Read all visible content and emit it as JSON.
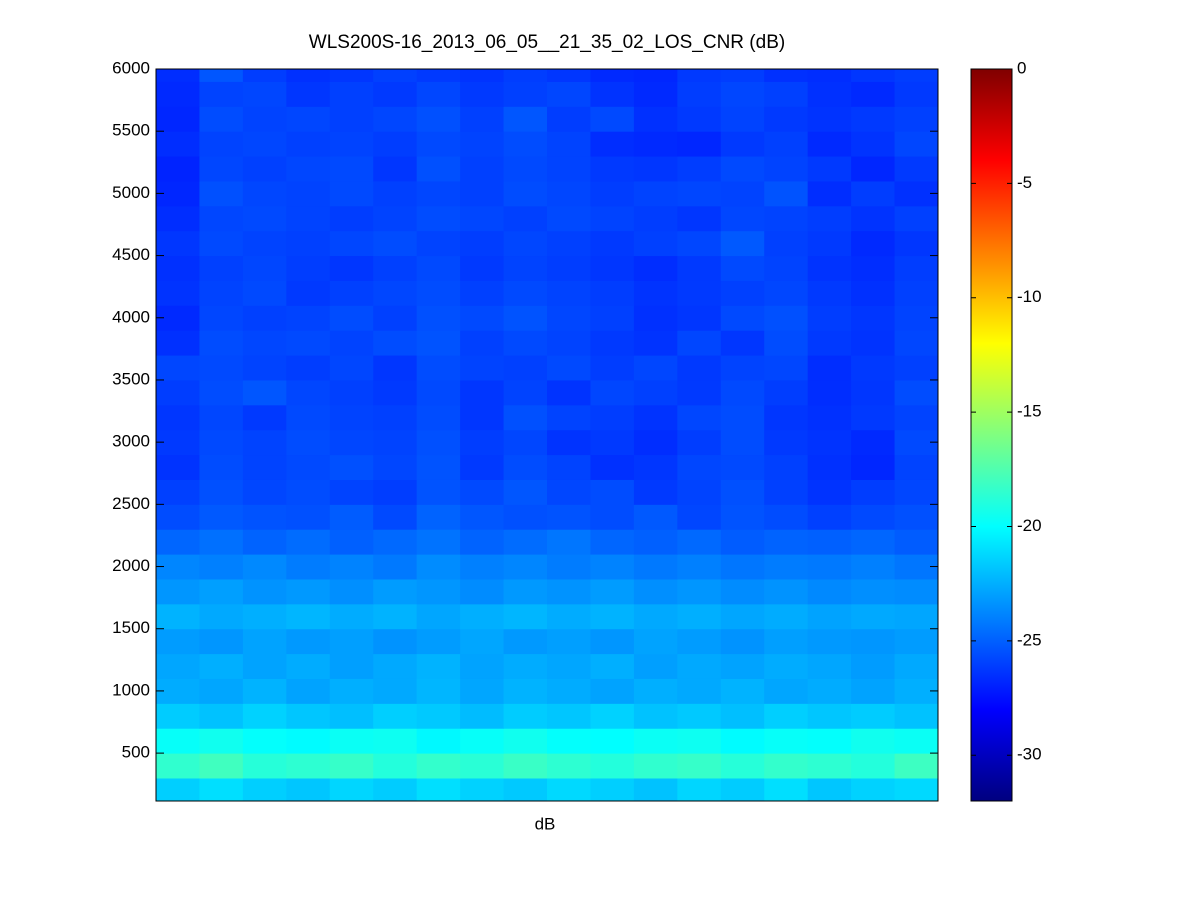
{
  "chart_data": {
    "type": "heatmap",
    "title": "WLS200S-16_2013_06_05__21_35_02_LOS_CNR (dB)",
    "xlabel": "dB",
    "colormap": "jet",
    "clim": [
      -32,
      0
    ],
    "cticks": [
      -30,
      -25,
      -20,
      -15,
      -10,
      -5,
      0
    ],
    "ylim": [
      115,
      6000
    ],
    "yticks": [
      500,
      1000,
      1500,
      2000,
      2500,
      3000,
      3500,
      4000,
      4500,
      5000,
      5500,
      6000
    ],
    "y_bins": [
      115,
      300,
      500,
      700,
      900,
      1100,
      1300,
      1500,
      1700,
      1900,
      2100,
      2300,
      2500,
      2700,
      2900,
      3100,
      3300,
      3500,
      3700,
      3900,
      4100,
      4300,
      4500,
      4700,
      4900,
      5100,
      5300,
      5500,
      5700,
      5900,
      6000
    ],
    "values": [
      [
        -21.5,
        -21,
        -21.5,
        -21.8,
        -21.3,
        -21.6,
        -21,
        -21.4,
        -21.7,
        -21.2,
        -21.5,
        -21.9,
        -21.3,
        -21.6,
        -21,
        -21.8,
        -21.4,
        -21.2
      ],
      [
        -18.5,
        -18,
        -18.8,
        -18.6,
        -18.3,
        -18.9,
        -18.4,
        -18.7,
        -18.2,
        -18.6,
        -18.9,
        -18.5,
        -18.3,
        -18.8,
        -18.4,
        -18.6,
        -18.9,
        -18.1
      ],
      [
        -19.8,
        -19.5,
        -19.9,
        -20.1,
        -19.7,
        -19.6,
        -20.2,
        -19.8,
        -19.5,
        -19.9,
        -20,
        -19.7,
        -19.6,
        -20.1,
        -19.8,
        -19.9,
        -19.5,
        -19.7
      ],
      [
        -21.6,
        -21.9,
        -21.4,
        -21.8,
        -22,
        -21.5,
        -21.7,
        -22.1,
        -21.6,
        -21.8,
        -21.4,
        -21.9,
        -21.7,
        -22,
        -21.5,
        -21.8,
        -21.6,
        -21.9
      ],
      [
        -22.6,
        -22.8,
        -22.4,
        -22.9,
        -22.5,
        -22.7,
        -22.3,
        -22.8,
        -22.4,
        -22.6,
        -22.9,
        -22.5,
        -22.7,
        -22.4,
        -22.8,
        -22.6,
        -22.9,
        -22.5
      ],
      [
        -22.8,
        -22.5,
        -22.9,
        -22.6,
        -23,
        -22.7,
        -22.4,
        -22.9,
        -22.6,
        -22.8,
        -22.5,
        -23,
        -22.7,
        -22.9,
        -22.6,
        -22.8,
        -23.1,
        -22.7
      ],
      [
        -23.1,
        -23.3,
        -22.9,
        -23.2,
        -23,
        -23.4,
        -23.1,
        -22.8,
        -23.2,
        -23,
        -23.3,
        -22.9,
        -23.1,
        -23.4,
        -23,
        -23.2,
        -23.3,
        -23.1
      ],
      [
        -22.4,
        -22.7,
        -22.5,
        -22.3,
        -22.6,
        -22.4,
        -22.8,
        -22.5,
        -22.3,
        -22.6,
        -22.4,
        -22.7,
        -22.5,
        -22.8,
        -22.6,
        -22.9,
        -22.7,
        -22.8
      ],
      [
        -23.3,
        -23,
        -23.4,
        -23.2,
        -23.5,
        -23.1,
        -23.3,
        -23.6,
        -23.2,
        -23.4,
        -23.1,
        -23.5,
        -23.3,
        -23.6,
        -23.4,
        -23.7,
        -23.5,
        -23.6
      ],
      [
        -23.8,
        -24,
        -23.7,
        -24.1,
        -23.9,
        -24.2,
        -23.6,
        -24,
        -23.8,
        -24.1,
        -23.9,
        -24.2,
        -24,
        -24.3,
        -24.1,
        -24.2,
        -24,
        -24.3
      ],
      [
        -24.8,
        -24.5,
        -24.9,
        -24.6,
        -25,
        -24.7,
        -24.4,
        -24.9,
        -24.6,
        -24.3,
        -24.8,
        -25,
        -24.7,
        -25.1,
        -24.9,
        -25,
        -24.8,
        -25.1
      ],
      [
        -25.6,
        -25.2,
        -25.4,
        -25.5,
        -25.1,
        -25.7,
        -24.9,
        -25.3,
        -25.5,
        -25.4,
        -25.6,
        -25.2,
        -25.8,
        -25.4,
        -25.6,
        -26,
        -25.7,
        -25.5
      ],
      [
        -26,
        -25.5,
        -25.8,
        -25.6,
        -25.9,
        -26.1,
        -25.4,
        -25.7,
        -25.3,
        -25.8,
        -25.6,
        -26.2,
        -25.9,
        -25.5,
        -26,
        -26.4,
        -26.1,
        -25.8
      ],
      [
        -26.4,
        -25.6,
        -25.9,
        -25.7,
        -25.5,
        -25.8,
        -25.4,
        -26.2,
        -25.6,
        -25.9,
        -26.5,
        -26.3,
        -25.8,
        -25.7,
        -26,
        -26.5,
        -26.8,
        -25.9
      ],
      [
        -26.2,
        -25.7,
        -25.9,
        -25.6,
        -25.8,
        -25.9,
        -25.5,
        -26.1,
        -25.8,
        -26.4,
        -26.2,
        -26.6,
        -26.1,
        -25.6,
        -26.2,
        -26.4,
        -26.7,
        -25.7
      ],
      [
        -26.3,
        -25.8,
        -26.2,
        -25.7,
        -25.9,
        -26,
        -25.6,
        -26.3,
        -25.5,
        -25.9,
        -26.1,
        -26.4,
        -25.8,
        -25.6,
        -26.3,
        -26.5,
        -26.2,
        -25.9
      ],
      [
        -26.1,
        -25.6,
        -25.3,
        -25.8,
        -26,
        -26.2,
        -25.7,
        -26.3,
        -25.9,
        -26.4,
        -25.8,
        -26,
        -26.2,
        -25.7,
        -26.1,
        -26.6,
        -26.3,
        -25.6
      ],
      [
        -25.8,
        -25.7,
        -25.9,
        -26.1,
        -25.8,
        -26.3,
        -25.6,
        -25.9,
        -26,
        -25.7,
        -26.1,
        -25.8,
        -26.2,
        -25.9,
        -25.8,
        -26.6,
        -26.2,
        -26
      ],
      [
        -26.5,
        -25.6,
        -25.8,
        -25.7,
        -25.9,
        -25.6,
        -25.4,
        -26,
        -25.7,
        -25.9,
        -26.2,
        -26.4,
        -25.8,
        -26.3,
        -25.6,
        -26.2,
        -26.4,
        -25.8
      ],
      [
        -26.7,
        -25.8,
        -26,
        -25.9,
        -25.6,
        -26,
        -25.5,
        -25.7,
        -25.4,
        -25.8,
        -26,
        -26.5,
        -26.3,
        -25.7,
        -25.5,
        -26.1,
        -26.3,
        -25.9
      ],
      [
        -26.4,
        -25.9,
        -25.7,
        -26.2,
        -26,
        -25.8,
        -25.6,
        -26,
        -25.7,
        -25.9,
        -26.1,
        -26.4,
        -26.2,
        -26,
        -25.8,
        -26.2,
        -26.5,
        -26
      ],
      [
        -26.5,
        -26,
        -25.8,
        -26.1,
        -26.3,
        -26,
        -25.7,
        -26.2,
        -25.9,
        -26.1,
        -26.3,
        -26.6,
        -26.2,
        -25.7,
        -25.9,
        -26.4,
        -26.6,
        -26.1
      ],
      [
        -26.3,
        -25.7,
        -25.9,
        -26,
        -25.8,
        -25.6,
        -25.9,
        -26.1,
        -25.8,
        -26,
        -26.2,
        -26,
        -25.8,
        -25.2,
        -26,
        -26.2,
        -26.7,
        -26.3
      ],
      [
        -26.6,
        -25.8,
        -25.7,
        -25.9,
        -26.1,
        -25.9,
        -25.6,
        -25.8,
        -26,
        -25.7,
        -25.9,
        -26.1,
        -26.3,
        -25.8,
        -25.9,
        -26.1,
        -26.4,
        -26
      ],
      [
        -26.8,
        -25.5,
        -25.8,
        -25.9,
        -25.7,
        -26,
        -25.8,
        -26,
        -25.6,
        -25.8,
        -26.1,
        -25.9,
        -25.8,
        -25.9,
        -25.4,
        -26.6,
        -26.1,
        -26.5
      ],
      [
        -26.9,
        -25.8,
        -26,
        -25.8,
        -25.7,
        -26.3,
        -25.5,
        -26,
        -25.7,
        -25.9,
        -26.2,
        -26.3,
        -26.1,
        -25.7,
        -25.9,
        -26.2,
        -26.8,
        -26.2
      ],
      [
        -26.6,
        -25.9,
        -25.8,
        -26,
        -25.9,
        -26.1,
        -25.7,
        -25.9,
        -25.6,
        -25.9,
        -26.6,
        -26.7,
        -26.8,
        -26.2,
        -26,
        -26.7,
        -26.4,
        -25.8
      ],
      [
        -26.8,
        -25.6,
        -25.9,
        -25.8,
        -26,
        -25.8,
        -25.5,
        -26,
        -25.3,
        -26.1,
        -25.7,
        -26.5,
        -26.2,
        -25.9,
        -26.2,
        -26.4,
        -26.2,
        -26
      ],
      [
        -26.7,
        -25.9,
        -25.8,
        -26.3,
        -26,
        -26.2,
        -25.8,
        -26.2,
        -26,
        -25.8,
        -26.4,
        -26.7,
        -26.1,
        -25.8,
        -26,
        -26.5,
        -26.7,
        -26.2
      ],
      [
        -26.6,
        -25.3,
        -26.1,
        -26.5,
        -26.3,
        -26,
        -26.2,
        -26.4,
        -26.1,
        -26.3,
        -26.7,
        -26.8,
        -26.2,
        -26.1,
        -26.5,
        -26.6,
        -26.3,
        -26.1
      ]
    ]
  }
}
